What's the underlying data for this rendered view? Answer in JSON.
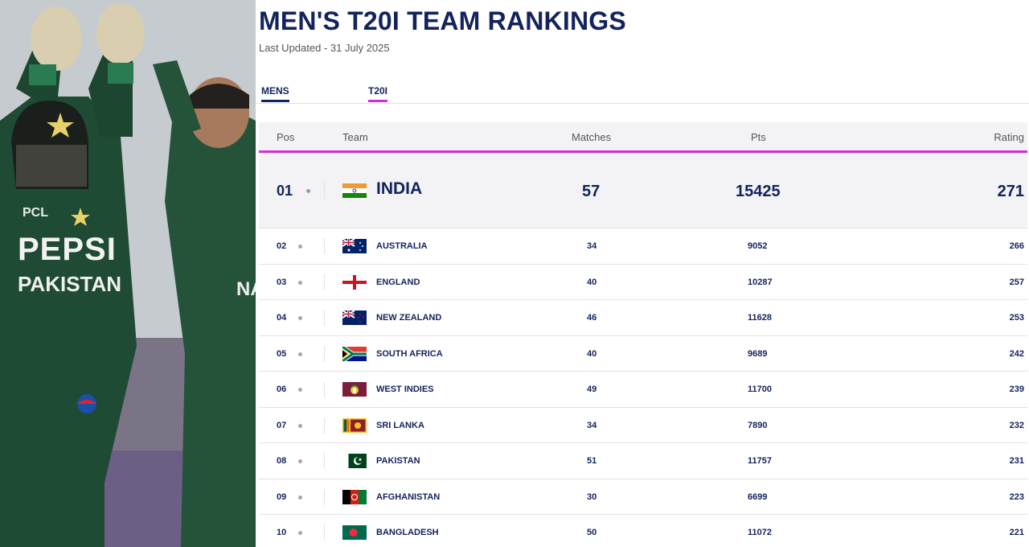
{
  "photo": {
    "jersey_sponsor": "PEPSI",
    "jersey_country": "PAKISTAN",
    "jersey_sponsor_small": "PCL",
    "jersey_name_fragment": "NA"
  },
  "header": {
    "title": "MEN'S T20I TEAM RANKINGS",
    "updated": "Last Updated - 31 July 2025"
  },
  "tabs": [
    {
      "label": "MENS"
    },
    {
      "label": "T20I"
    }
  ],
  "table": {
    "columns": {
      "pos": "Pos",
      "team": "Team",
      "matches": "Matches",
      "pts": "Pts",
      "rating": "Rating"
    },
    "rows": [
      {
        "pos": "01",
        "team": "INDIA",
        "matches": "57",
        "pts": "15425",
        "rating": "271",
        "flag": "india"
      },
      {
        "pos": "02",
        "team": "AUSTRALIA",
        "matches": "34",
        "pts": "9052",
        "rating": "266",
        "flag": "australia"
      },
      {
        "pos": "03",
        "team": "ENGLAND",
        "matches": "40",
        "pts": "10287",
        "rating": "257",
        "flag": "england"
      },
      {
        "pos": "04",
        "team": "NEW ZEALAND",
        "matches": "46",
        "pts": "11628",
        "rating": "253",
        "flag": "new-zealand"
      },
      {
        "pos": "05",
        "team": "SOUTH AFRICA",
        "matches": "40",
        "pts": "9689",
        "rating": "242",
        "flag": "south-africa"
      },
      {
        "pos": "06",
        "team": "WEST INDIES",
        "matches": "49",
        "pts": "11700",
        "rating": "239",
        "flag": "west-indies"
      },
      {
        "pos": "07",
        "team": "SRI LANKA",
        "matches": "34",
        "pts": "7890",
        "rating": "232",
        "flag": "sri-lanka"
      },
      {
        "pos": "08",
        "team": "PAKISTAN",
        "matches": "51",
        "pts": "11757",
        "rating": "231",
        "flag": "pakistan"
      },
      {
        "pos": "09",
        "team": "AFGHANISTAN",
        "matches": "30",
        "pts": "6699",
        "rating": "223",
        "flag": "afghanistan"
      },
      {
        "pos": "10",
        "team": "BANGLADESH",
        "matches": "50",
        "pts": "11072",
        "rating": "221",
        "flag": "bangladesh"
      }
    ]
  },
  "colors": {
    "navy": "#13235b",
    "accent": "#d62bd6",
    "row_alt": "#f3f3f5",
    "jersey_green": "#1f4a33"
  }
}
